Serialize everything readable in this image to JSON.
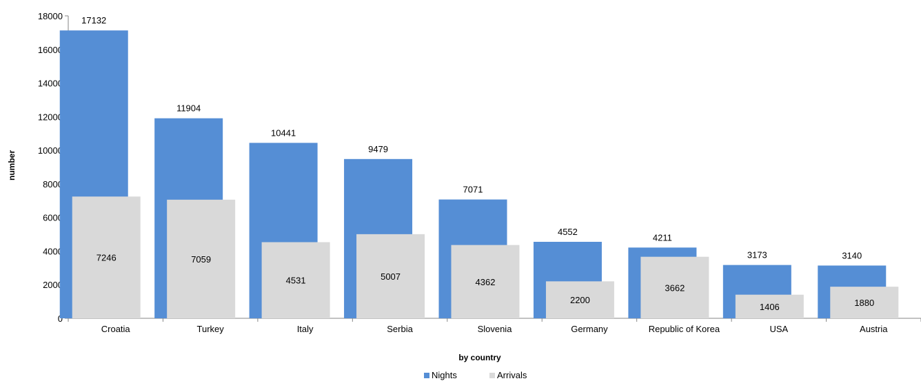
{
  "chart_data": {
    "type": "bar",
    "categories": [
      "Croatia",
      "Turkey",
      "Italy",
      "Serbia",
      "Slovenia",
      "Germany",
      "Republic of Korea",
      "USA",
      "Austria"
    ],
    "series": [
      {
        "name": "Nights",
        "color": "#558ED5",
        "values": [
          17132,
          11904,
          10441,
          9479,
          7071,
          4552,
          4211,
          3173,
          3140
        ]
      },
      {
        "name": "Arrivals",
        "color": "#D9D9D9",
        "values": [
          7246,
          7059,
          4531,
          5007,
          4362,
          2200,
          3662,
          1406,
          1880
        ]
      }
    ],
    "title": "",
    "xlabel": "by country",
    "ylabel": "number",
    "ylim": [
      0,
      18000
    ],
    "yticks": [
      0,
      2000,
      4000,
      6000,
      8000,
      10000,
      12000,
      14000,
      16000,
      18000
    ],
    "grid": false,
    "legend": "bottom"
  }
}
